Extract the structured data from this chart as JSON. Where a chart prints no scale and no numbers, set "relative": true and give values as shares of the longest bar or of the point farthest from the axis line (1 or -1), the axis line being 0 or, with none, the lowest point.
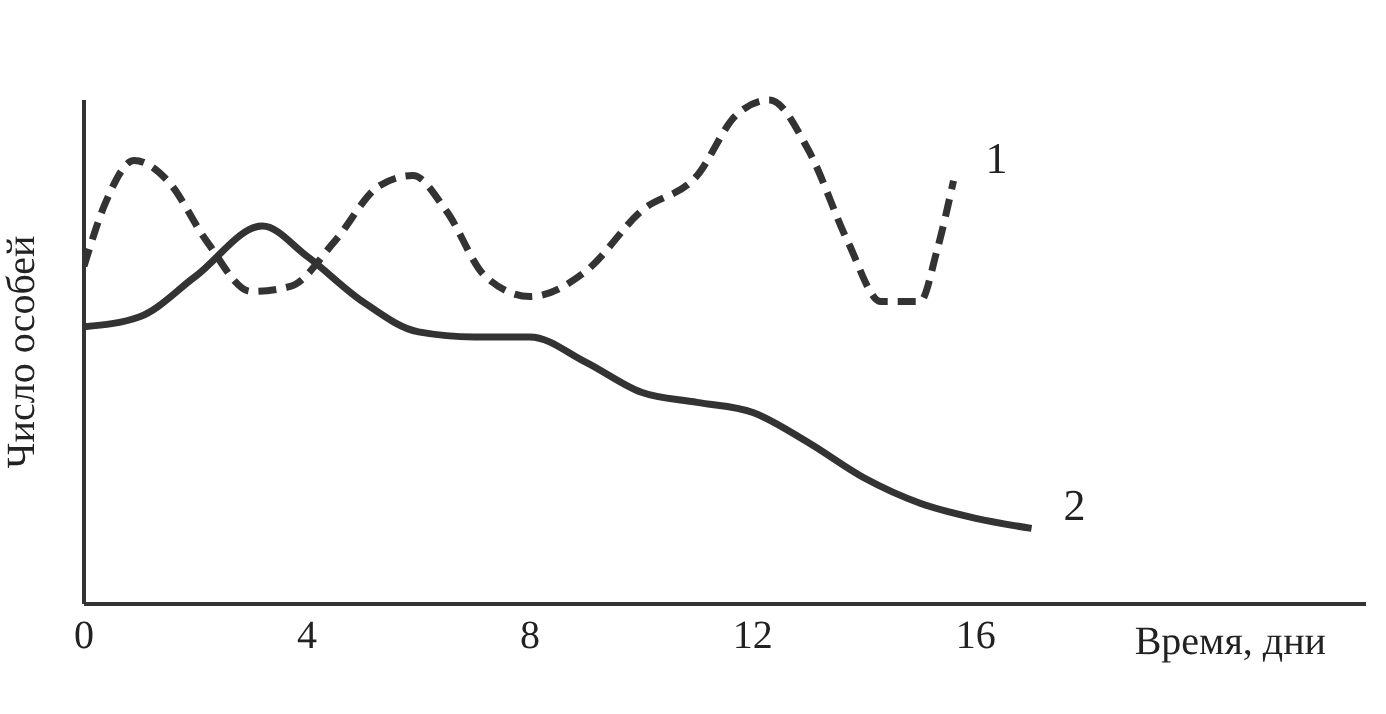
{
  "chart_data": {
    "type": "line",
    "relative": true,
    "xlabel": "Время, дни",
    "ylabel": "Число особей",
    "xlim": [
      0,
      23
    ],
    "xticks": [
      0,
      4,
      8,
      12,
      16
    ],
    "marker": "none",
    "series": [
      {
        "name": "1",
        "color": "#333333",
        "line_style": "dashed",
        "x": [
          0,
          0.4,
          0.9,
          1.5,
          2.2,
          3,
          3.7,
          4.5,
          5.3,
          5.9,
          6.5,
          7.2,
          8,
          9,
          10,
          11,
          11.7,
          12.3,
          13,
          13.7,
          14.3,
          15,
          15.3,
          15.6
        ],
        "values": [
          0.67,
          0.8,
          0.88,
          0.84,
          0.72,
          0.62,
          0.63,
          0.72,
          0.83,
          0.85,
          0.78,
          0.65,
          0.61,
          0.66,
          0.78,
          0.85,
          0.97,
          1,
          0.9,
          0.72,
          0.6,
          0.6,
          0.7,
          0.84
        ]
      },
      {
        "name": "2",
        "color": "#333333",
        "line_style": "solid",
        "x": [
          0,
          1,
          2,
          3.2,
          4,
          5,
          6,
          7,
          8,
          9,
          10,
          11,
          12,
          13,
          14,
          15,
          16,
          17
        ],
        "values": [
          0.55,
          0.57,
          0.65,
          0.75,
          0.69,
          0.6,
          0.54,
          0.53,
          0.53,
          0.48,
          0.42,
          0.4,
          0.38,
          0.32,
          0.25,
          0.2,
          0.17,
          0.15
        ]
      }
    ]
  }
}
